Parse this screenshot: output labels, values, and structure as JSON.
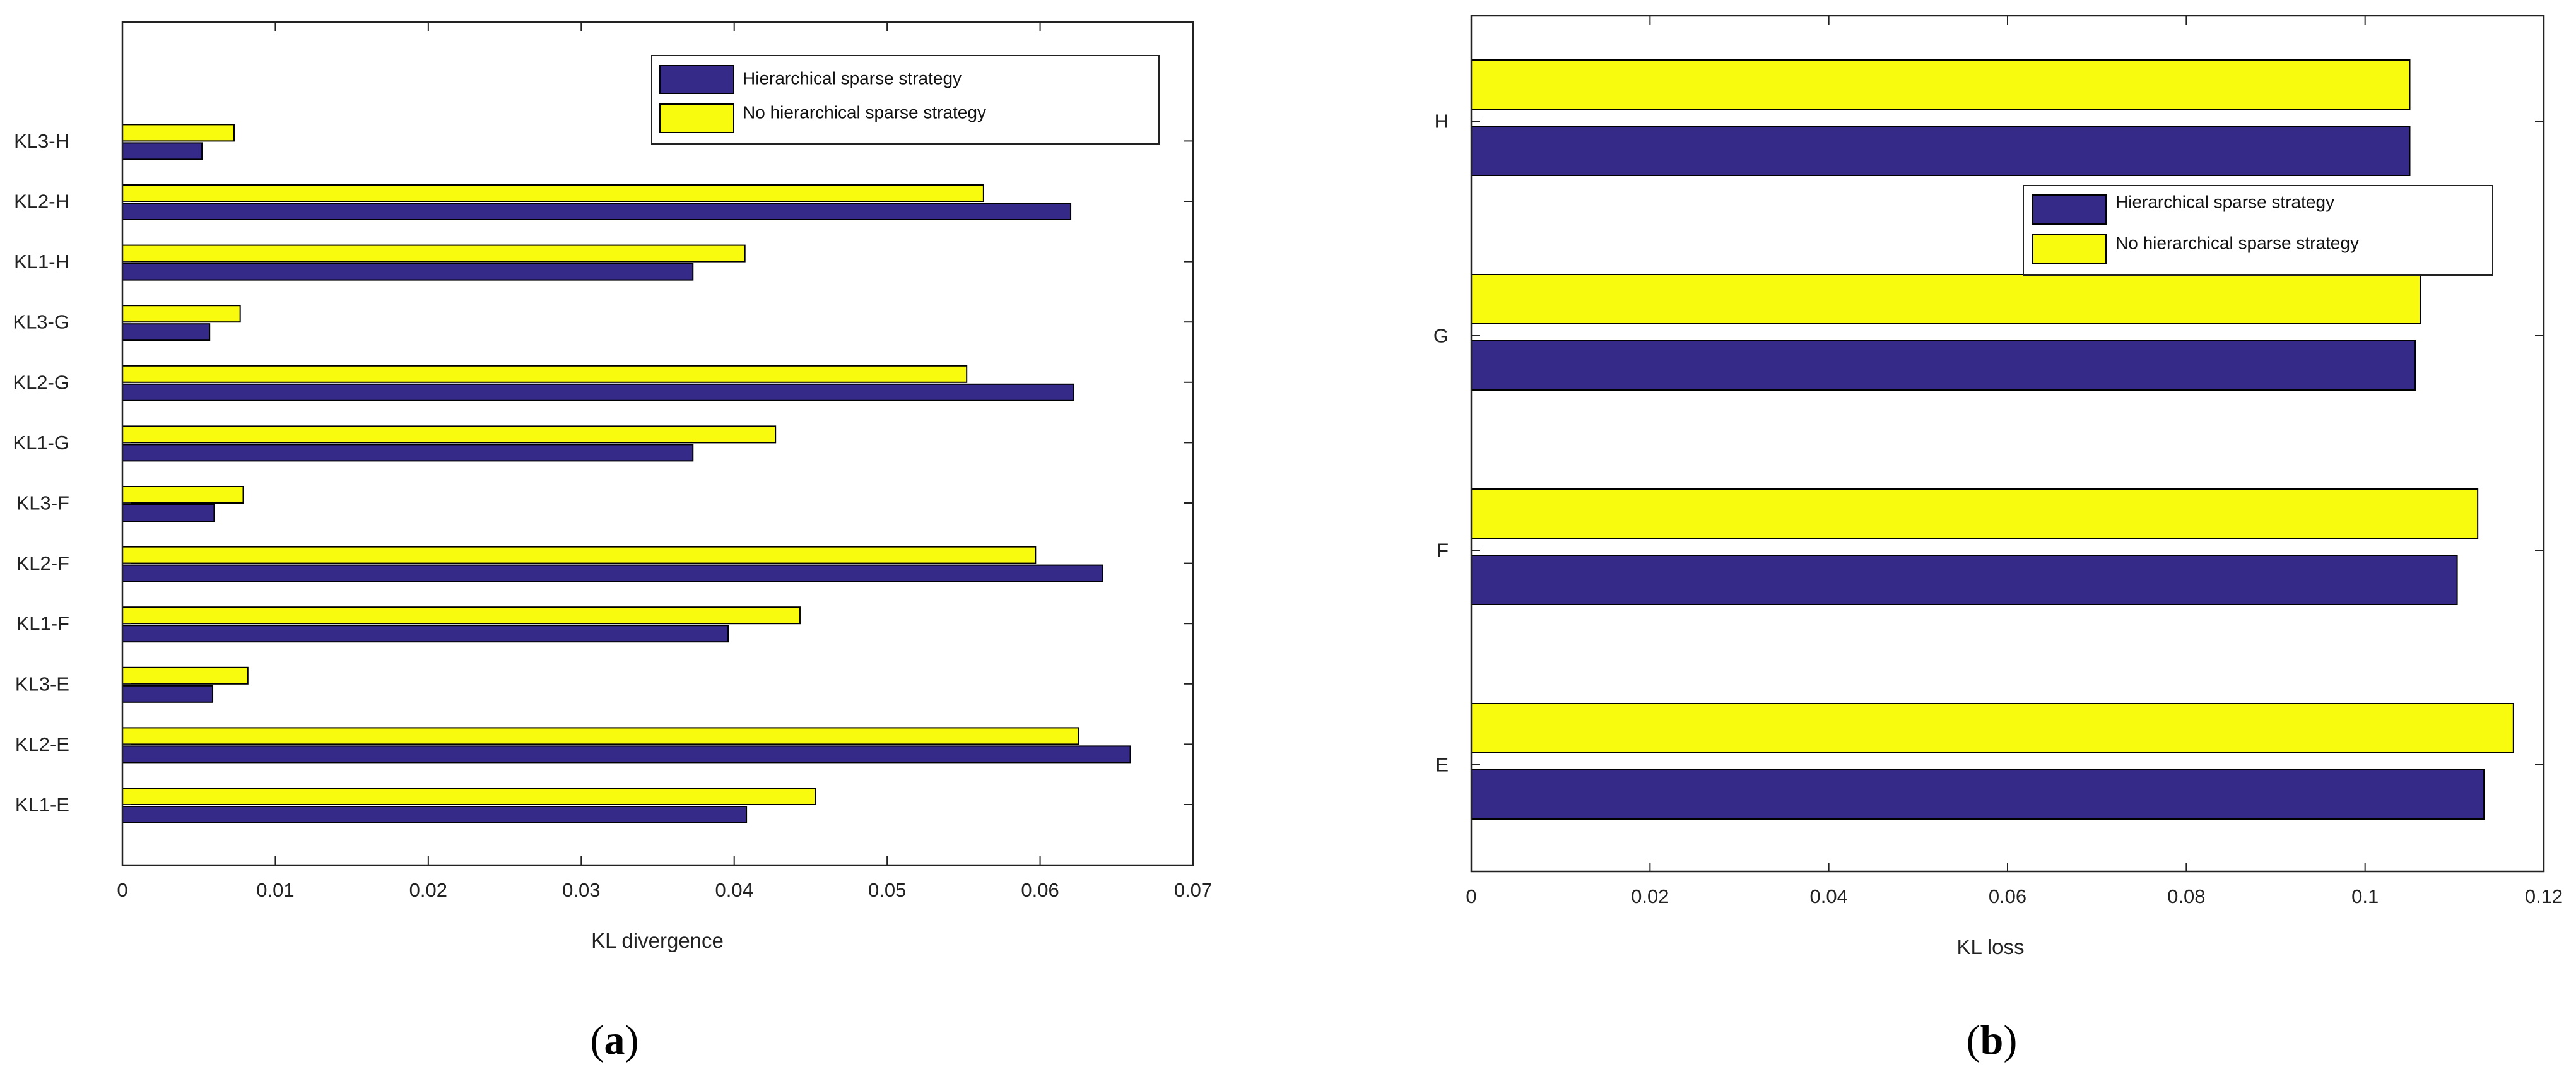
{
  "colors": {
    "series_hier": "#352a87",
    "series_nohier": "#f9fb0e",
    "axis": "#222222",
    "bar_edge": "#000000"
  },
  "chart_data": [
    {
      "type": "bar",
      "orientation": "horizontal",
      "panel_label": "a",
      "title": "",
      "xlabel": "KL divergence",
      "ylabel": "",
      "xlim": [
        0,
        0.07
      ],
      "xticks": [
        "0",
        "0.01",
        "0.02",
        "0.03",
        "0.04",
        "0.05",
        "0.06",
        "0.07"
      ],
      "categories": [
        "KL1-E",
        "KL2-E",
        "KL3-E",
        "KL1-F",
        "KL2-F",
        "KL3-F",
        "KL1-G",
        "KL2-G",
        "KL3-G",
        "KL1-H",
        "KL2-H",
        "KL3-H"
      ],
      "series": [
        {
          "name": "Hierarchical sparse strategy",
          "values": [
            0.0408,
            0.0659,
            0.0059,
            0.0396,
            0.0641,
            0.006,
            0.0373,
            0.0622,
            0.0057,
            0.0373,
            0.062,
            0.0052
          ]
        },
        {
          "name": "No hierarchical sparse strategy",
          "values": [
            0.0453,
            0.0625,
            0.0082,
            0.0443,
            0.0597,
            0.0079,
            0.0427,
            0.0552,
            0.0077,
            0.0407,
            0.0563,
            0.0073
          ]
        }
      ],
      "legend_position": "top-right"
    },
    {
      "type": "bar",
      "orientation": "horizontal",
      "panel_label": "b",
      "title": "",
      "xlabel": "KL loss",
      "ylabel": "",
      "xlim": [
        0,
        0.12
      ],
      "xticks": [
        "0",
        "0.02",
        "0.04",
        "0.06",
        "0.08",
        "0.1",
        "0.12"
      ],
      "categories": [
        "E",
        "F",
        "G",
        "H"
      ],
      "series": [
        {
          "name": "Hierarchical sparse strategy",
          "values": [
            0.1133,
            0.1103,
            0.1056,
            0.105
          ]
        },
        {
          "name": "No hierarchical sparse strategy",
          "values": [
            0.1166,
            0.1126,
            0.1062,
            0.105
          ]
        }
      ],
      "legend_position": "upper-right"
    }
  ]
}
